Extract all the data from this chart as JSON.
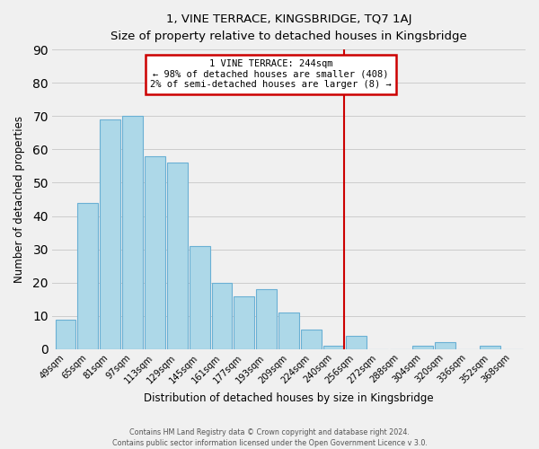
{
  "title": "1, VINE TERRACE, KINGSBRIDGE, TQ7 1AJ",
  "subtitle": "Size of property relative to detached houses in Kingsbridge",
  "xlabel": "Distribution of detached houses by size in Kingsbridge",
  "ylabel": "Number of detached properties",
  "bar_labels": [
    "49sqm",
    "65sqm",
    "81sqm",
    "97sqm",
    "113sqm",
    "129sqm",
    "145sqm",
    "161sqm",
    "177sqm",
    "193sqm",
    "209sqm",
    "224sqm",
    "240sqm",
    "256sqm",
    "272sqm",
    "288sqm",
    "304sqm",
    "320sqm",
    "336sqm",
    "352sqm",
    "368sqm"
  ],
  "bar_values": [
    9,
    44,
    69,
    70,
    58,
    56,
    31,
    20,
    16,
    18,
    11,
    6,
    1,
    4,
    0,
    0,
    1,
    2,
    0,
    1,
    0
  ],
  "bar_color": "#add8e8",
  "bar_edge_color": "#6ab0d4",
  "ylim": [
    0,
    90
  ],
  "yticks": [
    0,
    10,
    20,
    30,
    40,
    50,
    60,
    70,
    80,
    90
  ],
  "vline_color": "#cc0000",
  "annotation_title": "1 VINE TERRACE: 244sqm",
  "annotation_line1": "← 98% of detached houses are smaller (408)",
  "annotation_line2": "2% of semi-detached houses are larger (8) →",
  "annotation_box_color": "#ffffff",
  "annotation_box_edge_color": "#cc0000",
  "footer1": "Contains HM Land Registry data © Crown copyright and database right 2024.",
  "footer2": "Contains public sector information licensed under the Open Government Licence v 3.0.",
  "background_color": "#f0f0f0",
  "grid_color": "#cccccc"
}
